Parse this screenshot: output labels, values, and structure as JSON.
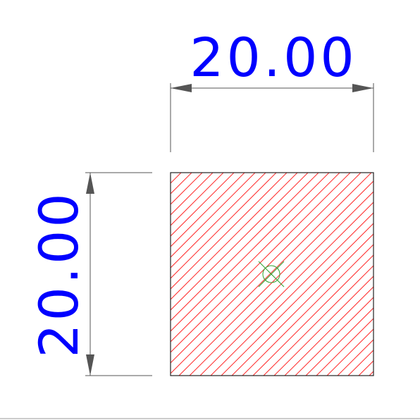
{
  "drawing": {
    "width_dimension": "20.00",
    "height_dimension": "20.00",
    "hatch_pattern": "diagonal-lines",
    "center_marker": "circle-cross-marker"
  },
  "colors": {
    "dimension_text": "#0000ff",
    "dimension_lines": "#555555",
    "outline": "#222222",
    "hatch": "#ff2a2a",
    "center_marker": "#2ea02e",
    "bottom_rule": "#9a9a9a",
    "background": "#ffffff"
  }
}
